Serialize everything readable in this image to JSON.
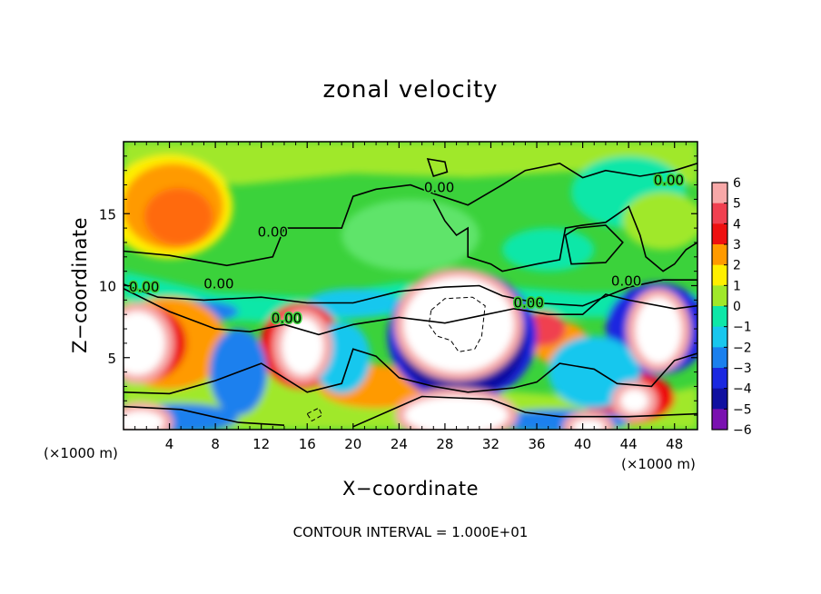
{
  "chart_data": {
    "type": "heatmap",
    "title": "zonal velocity",
    "xlabel": "X−coordinate",
    "ylabel": "Z−coordinate",
    "x_unit_label": "(×1000 m)",
    "x_ticks": [
      4,
      8,
      12,
      16,
      20,
      24,
      28,
      32,
      36,
      40,
      44,
      48
    ],
    "y_ticks": [
      5,
      10,
      15
    ],
    "xlim": [
      0,
      50
    ],
    "ylim": [
      0,
      20
    ],
    "footer": "CONTOUR INTERVAL = 1.000E+01",
    "colorbar": {
      "ticks": [
        6,
        5,
        4,
        3,
        2,
        1,
        0,
        -1,
        -2,
        -3,
        -4,
        -5,
        -6
      ],
      "tick_labels": [
        "6",
        "5",
        "4",
        "3",
        "2",
        "1",
        "0",
        "−1",
        "−2",
        "−3",
        "−4",
        "−5",
        "−6"
      ],
      "range": [
        -6,
        6
      ]
    },
    "contour_labels": [
      {
        "text": "0.00",
        "x": 27.5,
        "y": 16.5
      },
      {
        "text": "0.00",
        "x": 47.5,
        "y": 17.0
      },
      {
        "text": "0.00",
        "x": 13.0,
        "y": 13.4
      },
      {
        "text": "0.00",
        "x": 1.8,
        "y": 9.6
      },
      {
        "text": "0.00",
        "x": 8.3,
        "y": 9.8
      },
      {
        "text": "0.00",
        "x": 14.2,
        "y": 7.4
      },
      {
        "text": "0.00",
        "x": 35.3,
        "y": 8.5
      },
      {
        "text": "0.00",
        "x": 43.8,
        "y": 10.0
      }
    ],
    "features": [
      {
        "kind": "positive-max",
        "x": 4,
        "y": 15.5,
        "value": 3.5
      },
      {
        "kind": "saturated-positive",
        "x": 1.5,
        "y": 6.0
      },
      {
        "kind": "saturated-positive",
        "x": 15.5,
        "y": 5.8
      },
      {
        "kind": "saturated-positive",
        "x": 29.0,
        "y": 7.3
      },
      {
        "kind": "saturated-positive",
        "x": 46.5,
        "y": 6.8
      },
      {
        "kind": "saturated-positive",
        "x": 29.0,
        "y": 1.0
      },
      {
        "kind": "negative-band",
        "x": 30.0,
        "y": 5.2,
        "value": -5
      }
    ]
  },
  "colors": {
    "plus6": "#f7a8a8",
    "plus5": "#f04050",
    "plus4": "#ee1010",
    "plus3": "#ff9a00",
    "plus2": "#ffef00",
    "plus1": "#a0e82a",
    "zero": "#3bd23b",
    "minus1": "#0ee7a8",
    "minus2": "#18c7ee",
    "minus3": "#1a80ee",
    "minus4": "#1a28e0",
    "minus5": "#1010a0",
    "minus6": "#7a10b0"
  }
}
